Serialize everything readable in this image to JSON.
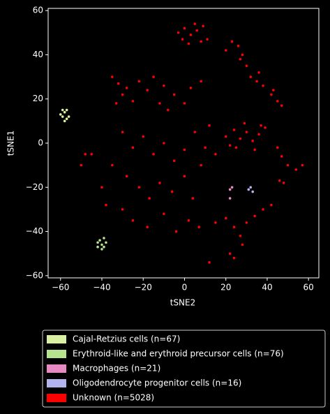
{
  "chart_data": {
    "type": "scatter",
    "xlabel": "tSNE2",
    "ylabel": "tSNE1",
    "xlim": [
      -66,
      65
    ],
    "ylim": [
      -61,
      61
    ],
    "xticks": [
      {
        "value": -60,
        "label": "−60"
      },
      {
        "value": -40,
        "label": "−40"
      },
      {
        "value": -20,
        "label": "−20"
      },
      0,
      20,
      40,
      60
    ],
    "yticks": [
      {
        "value": -60,
        "label": "−60"
      },
      {
        "value": -40,
        "label": "−40"
      },
      {
        "value": -20,
        "label": "−20"
      },
      0,
      20,
      40,
      60
    ],
    "legend": "below",
    "series": [
      {
        "name": "Cajal-Retzius cells (n=67)",
        "color": "#d9f0a3",
        "x": [
          -58,
          -59,
          -57,
          -58,
          -60,
          -56,
          -57,
          -59
        ],
        "values": [
          14,
          12,
          15,
          10,
          13,
          12,
          11,
          15
        ]
      },
      {
        "name": "Erythroid-like and erythroid precursor cells (n=76)",
        "color": "#b8e38e",
        "x": [
          -41,
          -40,
          -39,
          -42,
          -38,
          -40,
          -42,
          -39
        ],
        "values": [
          -44,
          -46,
          -43,
          -47,
          -45,
          -48,
          -45,
          -47
        ]
      },
      {
        "name": "Macrophages (n=21)",
        "color": "#e78ac3",
        "x": [
          22,
          23,
          22
        ],
        "values": [
          -21,
          -20,
          -25
        ]
      },
      {
        "name": "Oligodendrocyte progenitor cells (n=16)",
        "color": "#b3b3f0",
        "x": [
          31,
          33,
          32
        ],
        "values": [
          -21,
          -22,
          -20
        ]
      },
      {
        "name": "Unknown (n=5028)",
        "color": "#ff0000",
        "x": [
          -3,
          0,
          3,
          6,
          9,
          11,
          -1,
          5,
          8,
          2,
          20,
          23,
          26,
          28,
          30,
          27,
          32,
          35,
          38,
          42,
          45,
          47,
          43,
          36,
          20,
          24,
          27,
          30,
          33,
          36,
          39,
          22,
          29,
          34,
          37,
          25,
          -35,
          -32,
          -30,
          -33,
          -28,
          -25,
          -22,
          -18,
          -15,
          -10,
          -5,
          -8,
          0,
          3,
          8,
          -12,
          -30,
          -25,
          -20,
          -15,
          -10,
          -5,
          0,
          5,
          10,
          -35,
          -28,
          -22,
          -17,
          -12,
          -6,
          0,
          4,
          8,
          -40,
          -45,
          -38,
          -30,
          -25,
          -18,
          -10,
          -4,
          2,
          7,
          12,
          15,
          15,
          20,
          24,
          27,
          30,
          34,
          38,
          42,
          28,
          22,
          45,
          47,
          50,
          54,
          57,
          48,
          46,
          12,
          24,
          -48,
          -50
        ],
        "values": [
          50,
          52,
          49,
          51,
          53,
          47,
          47,
          54,
          46,
          45,
          42,
          46,
          44,
          40,
          35,
          38,
          30,
          28,
          26,
          22,
          19,
          17,
          24,
          32,
          3,
          6,
          2,
          5,
          1,
          4,
          7,
          -1,
          9,
          -3,
          8,
          -2,
          30,
          27,
          22,
          18,
          25,
          19,
          28,
          24,
          30,
          26,
          22,
          15,
          18,
          25,
          28,
          18,
          5,
          -2,
          3,
          -5,
          0,
          -8,
          -3,
          5,
          -2,
          -10,
          -15,
          -20,
          -25,
          -18,
          -22,
          -15,
          -25,
          -10,
          -20,
          -5,
          -28,
          -30,
          -35,
          -38,
          -32,
          -40,
          -35,
          -38,
          8,
          -5,
          -36,
          -34,
          -38,
          -42,
          -36,
          -33,
          -30,
          -28,
          -46,
          -50,
          -2,
          -6,
          -10,
          -12,
          -10,
          -18,
          -17,
          -54,
          -52,
          -5,
          -10
        ]
      }
    ]
  }
}
